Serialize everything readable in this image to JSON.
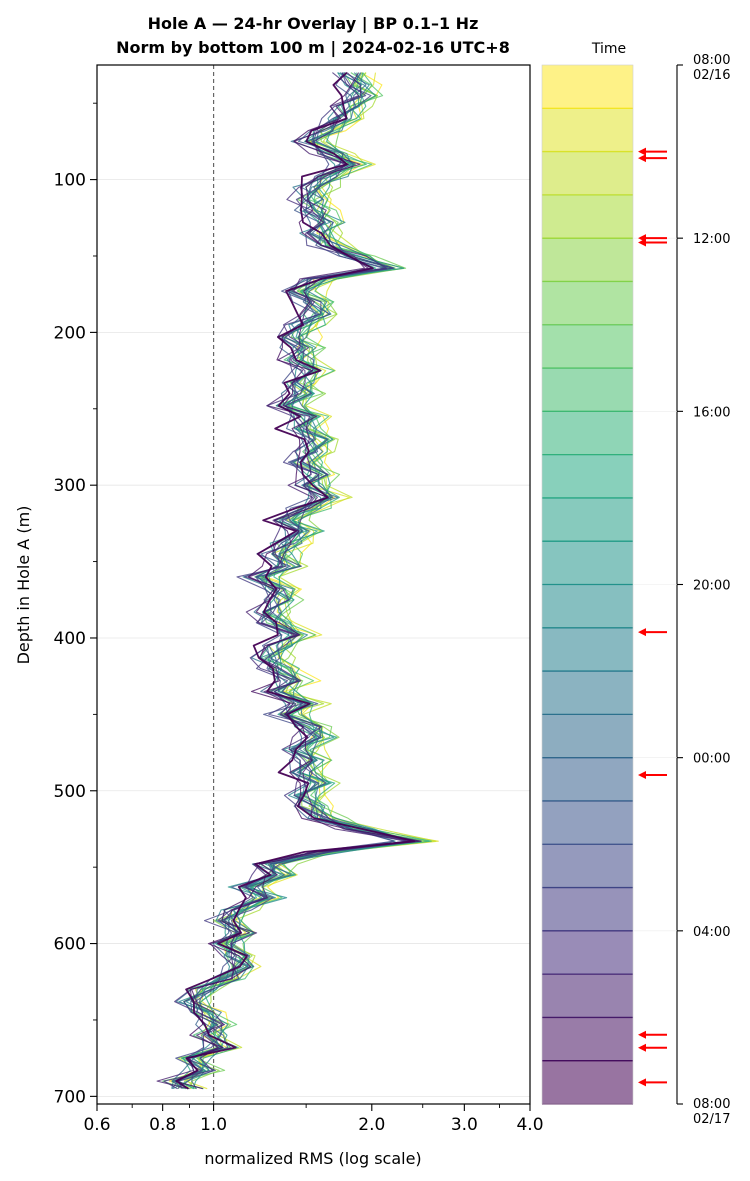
{
  "chart_data": {
    "type": "line",
    "title_line1": "Hole A — 24-hr Overlay  |  BP 0.1–1 Hz",
    "title_line2": "Norm by bottom 100 m  |  2024-02-16 UTC+8",
    "xlabel": "normalized RMS  (log scale)",
    "ylabel": "Depth in Hole A (m)",
    "xscale": "log",
    "xlim": [
      0.6,
      4.0
    ],
    "ylim": [
      25,
      705
    ],
    "y_inverted": true,
    "x_ticks": [
      0.6,
      0.8,
      1.0,
      2.0,
      3.0,
      4.0
    ],
    "x_tick_labels": [
      "0.6",
      "0.8",
      "1.0",
      "2.0",
      "3.0",
      "4.0"
    ],
    "y_ticks": [
      100,
      200,
      300,
      400,
      500,
      600,
      700
    ],
    "y_tick_labels": [
      "100",
      "200",
      "300",
      "400",
      "500",
      "600",
      "700"
    ],
    "reference_line_x": 1.0,
    "grid": "horizontal at major y ticks",
    "colormap": "viridis",
    "n_series": 24,
    "depth": [
      30,
      38,
      45,
      52,
      60,
      68,
      75,
      83,
      90,
      98,
      105,
      113,
      120,
      128,
      135,
      143,
      150,
      158,
      165,
      173,
      180,
      188,
      195,
      203,
      210,
      218,
      225,
      233,
      240,
      248,
      255,
      263,
      270,
      278,
      285,
      293,
      300,
      308,
      315,
      323,
      330,
      338,
      345,
      353,
      360,
      368,
      375,
      383,
      390,
      398,
      405,
      413,
      420,
      428,
      435,
      443,
      450,
      458,
      465,
      473,
      480,
      488,
      495,
      503,
      510,
      518,
      525,
      533,
      540,
      548,
      555,
      563,
      570,
      578,
      585,
      593,
      600,
      608,
      615,
      623,
      630,
      638,
      645,
      653,
      660,
      668,
      675,
      683,
      690,
      695
    ],
    "base_profile_rms": [
      1.78,
      1.83,
      1.87,
      1.78,
      1.72,
      1.6,
      1.5,
      1.65,
      1.78,
      1.62,
      1.52,
      1.5,
      1.52,
      1.6,
      1.55,
      1.62,
      1.82,
      2.1,
      1.55,
      1.42,
      1.52,
      1.55,
      1.45,
      1.38,
      1.45,
      1.42,
      1.5,
      1.42,
      1.45,
      1.35,
      1.48,
      1.45,
      1.55,
      1.5,
      1.45,
      1.55,
      1.5,
      1.6,
      1.48,
      1.35,
      1.45,
      1.35,
      1.3,
      1.35,
      1.2,
      1.3,
      1.32,
      1.25,
      1.28,
      1.4,
      1.3,
      1.25,
      1.3,
      1.38,
      1.3,
      1.45,
      1.35,
      1.5,
      1.55,
      1.42,
      1.5,
      1.45,
      1.55,
      1.45,
      1.5,
      1.58,
      1.85,
      2.35,
      1.6,
      1.25,
      1.3,
      1.15,
      1.25,
      1.1,
      1.05,
      1.12,
      1.05,
      1.1,
      1.12,
      1.05,
      0.95,
      0.9,
      0.95,
      1.0,
      0.98,
      1.02,
      0.9,
      0.95,
      0.85,
      0.88
    ],
    "colorbar": {
      "label": "Time",
      "top_tick": "08:00\n02/16",
      "ticks": [
        "12:00",
        "16:00",
        "20:00",
        "00:00",
        "04:00"
      ],
      "bottom_tick": "08:00\n02/17",
      "n_hours": 24,
      "marker_hours": [
        2.0,
        2.15,
        4.0,
        4.1,
        13.1,
        16.4,
        22.4,
        22.7,
        23.5
      ]
    }
  },
  "colors": {
    "reference_line": "#666666",
    "marker_arrow": "#ff0000",
    "grid": "#e6e6e6"
  }
}
